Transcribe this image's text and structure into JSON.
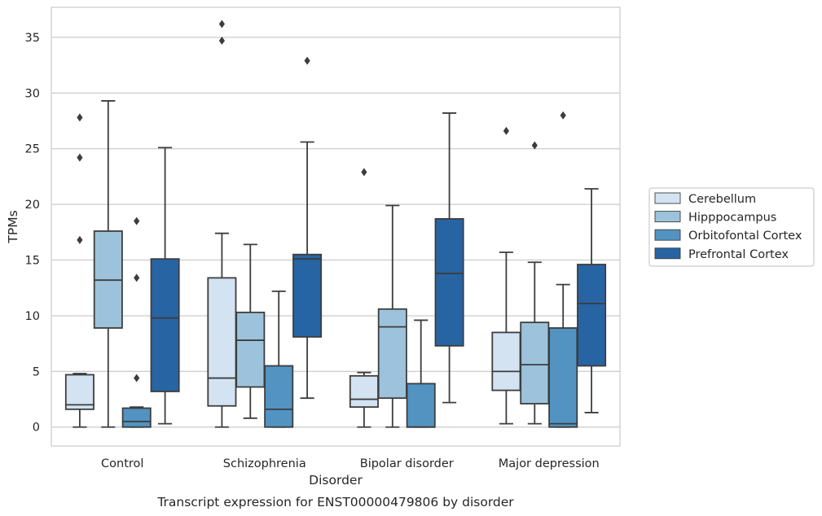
{
  "chart_data": {
    "type": "box",
    "title": "",
    "caption": "Transcript expression for ENST00000479806 by disorder",
    "xlabel": "Disorder",
    "ylabel": "TPMs",
    "ylim": [
      -1.7,
      37.7
    ],
    "yticks": [
      0,
      5,
      10,
      15,
      20,
      25,
      30,
      35
    ],
    "grid": "horizontal",
    "legend_position": "right",
    "categories": [
      "Control",
      "Schizophrenia",
      "Bipolar disorder",
      "Major depression"
    ],
    "series": [
      {
        "name": "Cerebellum",
        "color": "#d3e3f2",
        "boxes": [
          {
            "min": 0,
            "q1": 1.6,
            "median": 2.0,
            "q3": 4.7,
            "max": 4.8,
            "outliers": []
          },
          {
            "min": 0,
            "q1": 1.9,
            "median": 4.4,
            "q3": 13.4,
            "max": 17.4,
            "outliers": []
          },
          {
            "min": 0,
            "q1": 1.8,
            "median": 2.5,
            "q3": 4.6,
            "max": 4.9,
            "outliers": [
              22.9
            ]
          },
          {
            "min": 0.3,
            "q1": 3.3,
            "median": 5.0,
            "q3": 8.5,
            "max": 15.7,
            "outliers": [
              26.6
            ]
          }
        ]
      },
      {
        "name": "Hipppocampus",
        "color": "#9cc3db",
        "boxes": [
          {
            "min": 0,
            "q1": 8.9,
            "median": 13.2,
            "q3": 17.6,
            "max": 29.3,
            "outliers": []
          },
          {
            "min": 0.8,
            "q1": 3.6,
            "median": 7.8,
            "q3": 10.3,
            "max": 16.4,
            "outliers": []
          },
          {
            "min": 0,
            "q1": 2.6,
            "median": 9.0,
            "q3": 10.6,
            "max": 19.9,
            "outliers": []
          },
          {
            "min": 0.3,
            "q1": 2.1,
            "median": 5.6,
            "q3": 9.4,
            "max": 14.8,
            "outliers": [
              25.3
            ]
          }
        ]
      },
      {
        "name": "Orbitofontal Cortex",
        "color": "#5293c2",
        "boxes": [
          {
            "min": 0,
            "q1": 0,
            "median": 0.5,
            "q3": 1.7,
            "max": 1.8,
            "outliers": [
              4.4,
              13.4,
              18.5
            ]
          },
          {
            "min": 0,
            "q1": 0,
            "median": 1.6,
            "q3": 5.5,
            "max": 12.2,
            "outliers": []
          },
          {
            "min": 0,
            "q1": 0,
            "median": 0,
            "q3": 3.9,
            "max": 9.6,
            "outliers": []
          },
          {
            "min": 0,
            "q1": 0,
            "median": 0.3,
            "q3": 8.9,
            "max": 12.8,
            "outliers": [
              28.0
            ]
          }
        ]
      },
      {
        "name": "Prefrontal Cortex",
        "color": "#2764a4",
        "boxes": [
          {
            "min": 0.3,
            "q1": 3.2,
            "median": 9.8,
            "q3": 15.1,
            "max": 25.1,
            "outliers": []
          },
          {
            "min": 2.6,
            "q1": 8.1,
            "median": 15.1,
            "q3": 15.5,
            "max": 25.6,
            "outliers": [
              32.9
            ]
          },
          {
            "min": 2.2,
            "q1": 7.3,
            "median": 13.8,
            "q3": 18.7,
            "max": 28.2,
            "outliers": []
          },
          {
            "min": 1.3,
            "q1": 5.5,
            "median": 11.1,
            "q3": 14.6,
            "max": 21.4,
            "outliers": []
          }
        ]
      }
    ],
    "extra_outliers": [
      {
        "category": 0,
        "series": 0,
        "values": [
          16.8,
          24.2,
          27.8
        ]
      },
      {
        "category": 1,
        "series": 0,
        "values": [
          34.7,
          36.2
        ]
      }
    ]
  }
}
